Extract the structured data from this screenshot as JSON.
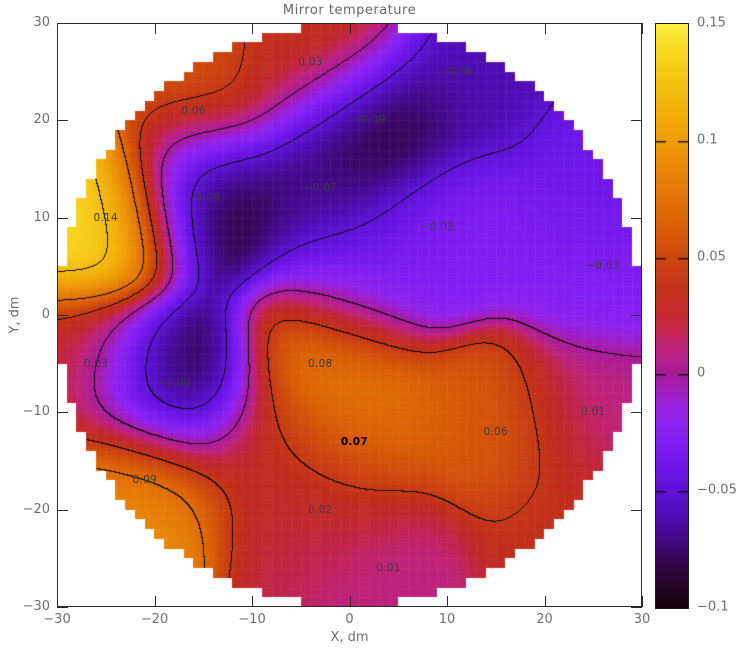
{
  "title": "Mirror temperature",
  "axes": {
    "x_label": "X, dm",
    "y_label": "Y, dm",
    "x_range": [
      -30,
      30
    ],
    "y_range": [
      -30,
      30
    ],
    "x_tick_values": [
      -30,
      -20,
      -10,
      0,
      10,
      20,
      30
    ],
    "x_tick_labels": [
      "−30",
      "−20",
      "−10",
      "0",
      "10",
      "20",
      "30"
    ],
    "y_tick_values": [
      30,
      20,
      10,
      0,
      -10,
      -20,
      -30
    ],
    "y_tick_labels": [
      "30",
      "20",
      "10",
      "0",
      "−10",
      "−20",
      "−30"
    ]
  },
  "colorbar": {
    "range": [
      -0.1,
      0.15
    ],
    "tick_values": [
      0.15,
      0.1,
      0.05,
      0,
      -0.05,
      -0.1
    ],
    "tick_labels": [
      "0.15",
      "0.1",
      "0.05",
      "0",
      "−0.05",
      "−0.1"
    ],
    "inner_dash_values": [
      0.1,
      0.05,
      0,
      -0.05
    ]
  },
  "colors": {
    "axis": "#2b2b2b",
    "tick_label": "#6f6f6f",
    "title": "#686868",
    "annotation": "#3d3d3d",
    "annotation_bold": "#000000",
    "contour": "#000000",
    "background": "#ffffff"
  },
  "chart_data": {
    "type": "heatmap",
    "title": "Mirror temperature",
    "xlabel": "X, dm",
    "ylabel": "Y, dm",
    "xlim": [
      -30,
      30
    ],
    "ylim": [
      -30,
      30
    ],
    "zlim": [
      -0.1,
      0.15
    ],
    "mask_circle_radius_dm": 30,
    "grid_cell_dm": 1,
    "contour_levels": [
      -0.08,
      -0.05,
      0,
      0.04,
      0.07,
      0.12
    ],
    "rbf_2sigma2": 44,
    "points": [
      {
        "x": -4,
        "y": 26,
        "value": 0.03,
        "label": "0.03"
      },
      {
        "x": 11,
        "y": 25,
        "value": -0.06,
        "label": "−0.06"
      },
      {
        "x": -16,
        "y": 21,
        "value": 0.06,
        "label": "0.06"
      },
      {
        "x": 2,
        "y": 20,
        "value": -0.09,
        "label": "−0.09",
        "w": 1.7
      },
      {
        "x": -3,
        "y": 13,
        "value": -0.07,
        "label": "−0.07"
      },
      {
        "x": -15,
        "y": 12,
        "value": -0.09,
        "label": "−0.09",
        "w": 1.7
      },
      {
        "x": -25,
        "y": 10,
        "value": 0.14,
        "label": "0.14",
        "w": 1.7
      },
      {
        "x": 9,
        "y": 9,
        "value": -0.03,
        "label": "−0.03"
      },
      {
        "x": 26,
        "y": 5,
        "value": -0.03,
        "label": "−0.03"
      },
      {
        "x": -26,
        "y": -5,
        "value": 0.03,
        "label": "0.03"
      },
      {
        "x": -18,
        "y": -7,
        "value": -0.09,
        "label": "−0.09",
        "w": 1.7
      },
      {
        "x": -3,
        "y": -5,
        "value": 0.08,
        "label": "0.08",
        "w": 1.25
      },
      {
        "x": 0.5,
        "y": -13,
        "value": 0.07,
        "label": "0.07",
        "bold": true
      },
      {
        "x": 15,
        "y": -12,
        "value": 0.06,
        "label": "0.06"
      },
      {
        "x": 25,
        "y": -10,
        "value": 0.01,
        "label": "0.01"
      },
      {
        "x": -21,
        "y": -17,
        "value": 0.09,
        "label": "0.09",
        "w": 1.25
      },
      {
        "x": -3,
        "y": -20,
        "value": 0.02,
        "label": "0.02"
      },
      {
        "x": 4,
        "y": -26,
        "value": 0.01,
        "label": "0.01"
      }
    ],
    "estimated_fill_points": [
      {
        "x": 0,
        "y": 4,
        "value": -0.035
      },
      {
        "x": -9,
        "y": -14,
        "value": 0.03
      },
      {
        "x": 22,
        "y": -22,
        "value": 0.035
      },
      {
        "x": 28,
        "y": 14,
        "value": -0.04
      },
      {
        "x": -2,
        "y": 29,
        "value": 0.05
      }
    ],
    "palette_stops": [
      [
        -0.1,
        "#150109"
      ],
      [
        -0.09,
        "#260428"
      ],
      [
        -0.08,
        "#35064e"
      ],
      [
        -0.07,
        "#430988"
      ],
      [
        -0.06,
        "#500db8"
      ],
      [
        -0.05,
        "#5e11d6"
      ],
      [
        -0.04,
        "#6d15e8"
      ],
      [
        -0.03,
        "#7f1df2"
      ],
      [
        -0.02,
        "#8e22f0"
      ],
      [
        -0.012,
        "#9a20d8"
      ],
      [
        -0.006,
        "#a31cb8"
      ],
      [
        0.0,
        "#a81a9b"
      ],
      [
        0.006,
        "#b31f8e"
      ],
      [
        0.012,
        "#bf2379"
      ],
      [
        0.018,
        "#c22450"
      ],
      [
        0.025,
        "#c32830"
      ],
      [
        0.035,
        "#c22e1b"
      ],
      [
        0.05,
        "#cd470e"
      ],
      [
        0.065,
        "#dc6305"
      ],
      [
        0.08,
        "#e57a06"
      ],
      [
        0.095,
        "#ec9406"
      ],
      [
        0.11,
        "#f2ab08"
      ],
      [
        0.125,
        "#f5c312"
      ],
      [
        0.14,
        "#f8dc22"
      ],
      [
        0.15,
        "#fbee40"
      ]
    ]
  }
}
